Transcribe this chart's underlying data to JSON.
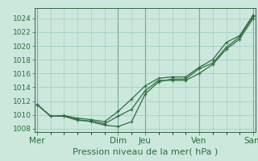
{
  "background_color": "#cce8dd",
  "grid_color": "#99ccbb",
  "line_color": "#2d6e3e",
  "title": "Pression niveau de la mer( hPa )",
  "ylim": [
    1007.5,
    1025.5
  ],
  "yticks": [
    1008,
    1010,
    1012,
    1014,
    1016,
    1018,
    1020,
    1022,
    1024
  ],
  "day_labels": [
    "Mer",
    "Dim",
    "Jeu",
    "Ven",
    "Sam"
  ],
  "day_positions": [
    0,
    36,
    48,
    72,
    96
  ],
  "xlim": [
    -1,
    97
  ],
  "series1_x": [
    0,
    6,
    12,
    18,
    24,
    30,
    36,
    42,
    48,
    54,
    60,
    66,
    72,
    78,
    84,
    90,
    96
  ],
  "series1_y": [
    1011.5,
    1009.8,
    1009.8,
    1009.3,
    1009.0,
    1008.5,
    1008.3,
    1009.0,
    1013.0,
    1014.8,
    1015.2,
    1015.2,
    1016.7,
    1017.5,
    1019.8,
    1021.3,
    1024.3
  ],
  "series2_x": [
    0,
    6,
    12,
    18,
    24,
    30,
    36,
    42,
    48,
    54,
    60,
    66,
    72,
    78,
    84,
    90,
    96
  ],
  "series2_y": [
    1011.5,
    1009.8,
    1009.8,
    1009.2,
    1009.1,
    1008.7,
    1009.8,
    1010.8,
    1013.5,
    1015.0,
    1015.0,
    1015.0,
    1016.0,
    1017.3,
    1019.5,
    1021.0,
    1024.0
  ],
  "series3_x": [
    0,
    6,
    12,
    18,
    24,
    30,
    36,
    42,
    48,
    54,
    60,
    66,
    72,
    78,
    84,
    90,
    96
  ],
  "series3_y": [
    1011.5,
    1009.8,
    1009.9,
    1009.5,
    1009.3,
    1009.0,
    1010.5,
    1012.3,
    1014.2,
    1015.3,
    1015.5,
    1015.5,
    1016.9,
    1018.0,
    1020.5,
    1021.5,
    1024.5
  ],
  "vline_color": "#336644",
  "tick_fontsize": 6.5,
  "xlabel_fontsize": 8,
  "xtick_fontsize": 7.5,
  "marker_size": 3.5,
  "line_width": 0.9
}
